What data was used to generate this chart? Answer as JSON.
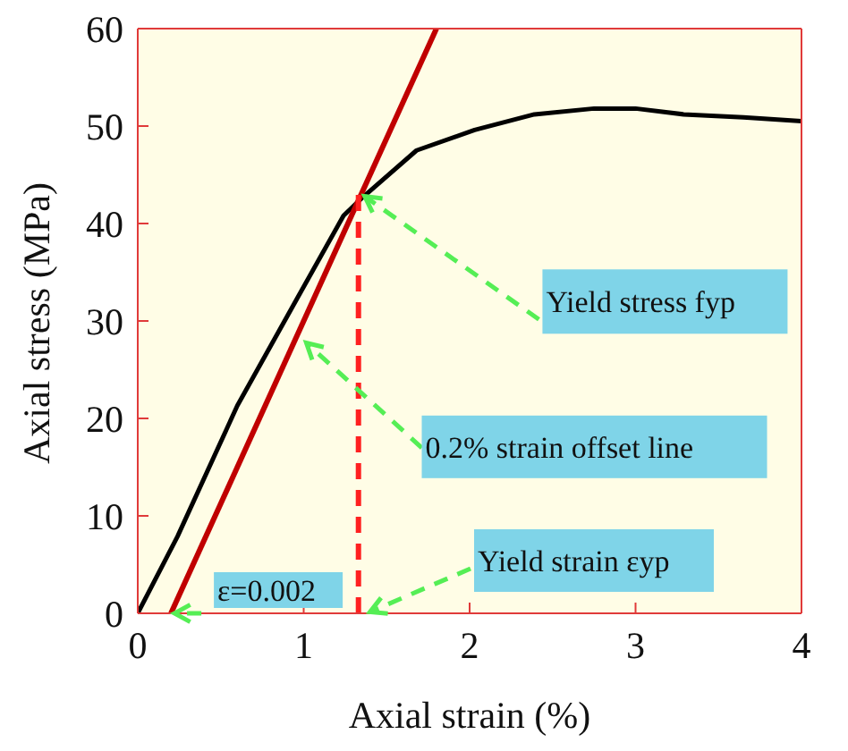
{
  "chart_data": {
    "type": "line",
    "xlabel": "Axial strain (%)",
    "ylabel": "Axial stress  (MPa)",
    "xlim": [
      0,
      4
    ],
    "xticks": [
      0,
      1,
      2,
      3,
      4
    ],
    "ylim": [
      0,
      60
    ],
    "yticks": [
      0,
      10,
      20,
      30,
      40,
      50,
      60
    ],
    "grid": false,
    "marker": "none",
    "series": [
      {
        "color": "#000000",
        "line_style": "solid",
        "x": [
          0,
          0.24,
          0.6,
          0.96,
          1.24,
          1.35,
          1.68,
          2.03,
          2.39,
          2.75,
          3.0,
          3.29,
          3.65,
          4.0
        ],
        "values": [
          0,
          7.9,
          21.3,
          32.3,
          40.8,
          42.6,
          47.5,
          49.6,
          51.2,
          51.8,
          51.8,
          51.2,
          50.9,
          50.5
        ]
      },
      {
        "color": "#c00000",
        "line_style": "solid",
        "x": [
          0.2,
          1.8
        ],
        "values": [
          0,
          60
        ]
      },
      {
        "color": "#ff2020",
        "line_style": "dashed",
        "x": [
          1.33,
          1.33
        ],
        "values": [
          0,
          43
        ]
      }
    ],
    "annotations": [
      {
        "text": "Yield stress fyp",
        "x": 1.35,
        "y": 43
      },
      {
        "text": "0.2% strain offset line",
        "x": 1.0,
        "y": 28
      },
      {
        "text": "Yield strain εyp",
        "x": 1.38,
        "y": 0
      },
      {
        "text": "ε=0.002",
        "x": 0.2,
        "y": 0
      }
    ]
  }
}
